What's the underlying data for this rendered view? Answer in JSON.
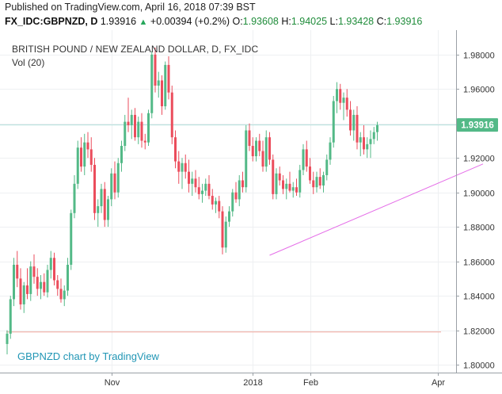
{
  "header": {
    "published": "Published on TradingView.com, April 16, 2018 07:39 BST",
    "symbol": "FX_IDC:GBPNZD, D",
    "last": "1.93916",
    "change": "+0.00394 (+0.2%)",
    "o_label": "O:",
    "o_value": "1.93608",
    "h_label": "H:",
    "h_value": "1.94025",
    "l_label": "L:",
    "l_value": "1.93428",
    "c_label": "C:",
    "c_value": "1.93916"
  },
  "overlay": {
    "title": "BRITISH POUND / NEW ZEALAND DOLLAR, D, FX_IDC",
    "volume": "Vol (20)",
    "watermark": "GBPNZD chart by TradingView"
  },
  "price_badge": "1.93916",
  "colors": {
    "up": "#53b987",
    "down": "#eb4d5c",
    "trendline": "#e56ee8",
    "support": "#f0a59a",
    "last_price_line": "#b2dfdb",
    "badge_bg": "#53b987"
  },
  "chart_data": {
    "type": "candlestick",
    "title": "BRITISH POUND / NEW ZEALAND DOLLAR, D, FX_IDC",
    "ylim": [
      1.8,
      1.985
    ],
    "y_ticks": [
      "1.98000",
      "1.96000",
      "1.94000",
      "1.92000",
      "1.90000",
      "1.88000",
      "1.86000",
      "1.84000",
      "1.82000",
      "1.80000"
    ],
    "x_ticks": [
      {
        "label": "Nov",
        "index": 31
      },
      {
        "label": "2018",
        "index": 73
      },
      {
        "label": "Feb",
        "index": 90
      },
      {
        "label": "Apr",
        "index": 128
      }
    ],
    "last_price": 1.93916,
    "support_level": 1.819,
    "trendline": {
      "from": {
        "index": 78,
        "price": 1.8635
      },
      "to": {
        "index": 140,
        "price": 1.9165
      }
    },
    "candles": [
      [
        1.812,
        1.82,
        1.806,
        1.818
      ],
      [
        1.818,
        1.84,
        1.815,
        1.838
      ],
      [
        1.838,
        1.862,
        1.834,
        1.858
      ],
      [
        1.858,
        1.866,
        1.845,
        1.85
      ],
      [
        1.85,
        1.856,
        1.832,
        1.835
      ],
      [
        1.835,
        1.848,
        1.83,
        1.846
      ],
      [
        1.846,
        1.856,
        1.838,
        1.841
      ],
      [
        1.841,
        1.86,
        1.837,
        1.857
      ],
      [
        1.857,
        1.864,
        1.847,
        1.851
      ],
      [
        1.851,
        1.856,
        1.84,
        1.844
      ],
      [
        1.844,
        1.852,
        1.838,
        1.848
      ],
      [
        1.848,
        1.853,
        1.84,
        1.842
      ],
      [
        1.842,
        1.858,
        1.839,
        1.855
      ],
      [
        1.855,
        1.866,
        1.85,
        1.862
      ],
      [
        1.862,
        1.865,
        1.846,
        1.849
      ],
      [
        1.849,
        1.852,
        1.84,
        1.844
      ],
      [
        1.844,
        1.85,
        1.836,
        1.838
      ],
      [
        1.838,
        1.846,
        1.834,
        1.843
      ],
      [
        1.843,
        1.862,
        1.84,
        1.858
      ],
      [
        1.858,
        1.89,
        1.855,
        1.888
      ],
      [
        1.888,
        1.91,
        1.885,
        1.905
      ],
      [
        1.905,
        1.93,
        1.902,
        1.926
      ],
      [
        1.926,
        1.932,
        1.912,
        1.915
      ],
      [
        1.915,
        1.934,
        1.91,
        1.929
      ],
      [
        1.929,
        1.935,
        1.92,
        1.925
      ],
      [
        1.925,
        1.932,
        1.912,
        1.916
      ],
      [
        1.916,
        1.92,
        1.884,
        1.888
      ],
      [
        1.888,
        1.896,
        1.88,
        1.892
      ],
      [
        1.892,
        1.905,
        1.888,
        1.902
      ],
      [
        1.902,
        1.906,
        1.88,
        1.884
      ],
      [
        1.884,
        1.898,
        1.88,
        1.896
      ],
      [
        1.896,
        1.914,
        1.892,
        1.911
      ],
      [
        1.911,
        1.918,
        1.896,
        1.9
      ],
      [
        1.9,
        1.92,
        1.897,
        1.917
      ],
      [
        1.917,
        1.93,
        1.912,
        1.927
      ],
      [
        1.927,
        1.945,
        1.924,
        1.941
      ],
      [
        1.941,
        1.955,
        1.935,
        1.939
      ],
      [
        1.939,
        1.948,
        1.931,
        1.945
      ],
      [
        1.945,
        1.949,
        1.93,
        1.932
      ],
      [
        1.932,
        1.944,
        1.928,
        1.941
      ],
      [
        1.941,
        1.946,
        1.926,
        1.93
      ],
      [
        1.93,
        1.934,
        1.925,
        1.929
      ],
      [
        1.929,
        1.948,
        1.927,
        1.946
      ],
      [
        1.946,
        1.982,
        1.943,
        1.98
      ],
      [
        1.98,
        1.984,
        1.958,
        1.962
      ],
      [
        1.962,
        1.97,
        1.955,
        1.965
      ],
      [
        1.965,
        1.968,
        1.945,
        1.95
      ],
      [
        1.95,
        1.976,
        1.948,
        1.974
      ],
      [
        1.974,
        1.979,
        1.954,
        1.958
      ],
      [
        1.958,
        1.962,
        1.928,
        1.932
      ],
      [
        1.932,
        1.936,
        1.914,
        1.918
      ],
      [
        1.918,
        1.924,
        1.905,
        1.912
      ],
      [
        1.912,
        1.92,
        1.902,
        1.917
      ],
      [
        1.917,
        1.922,
        1.908,
        1.912
      ],
      [
        1.912,
        1.919,
        1.9,
        1.905
      ],
      [
        1.905,
        1.912,
        1.898,
        1.908
      ],
      [
        1.908,
        1.913,
        1.9,
        1.903
      ],
      [
        1.903,
        1.909,
        1.896,
        1.899
      ],
      [
        1.899,
        1.905,
        1.894,
        1.901
      ],
      [
        1.901,
        1.908,
        1.898,
        1.905
      ],
      [
        1.905,
        1.91,
        1.896,
        1.898
      ],
      [
        1.898,
        1.902,
        1.89,
        1.893
      ],
      [
        1.893,
        1.897,
        1.888,
        1.895
      ],
      [
        1.895,
        1.898,
        1.885,
        1.889
      ],
      [
        1.889,
        1.892,
        1.864,
        1.868
      ],
      [
        1.868,
        1.886,
        1.865,
        1.883
      ],
      [
        1.883,
        1.892,
        1.88,
        1.889
      ],
      [
        1.889,
        1.902,
        1.886,
        1.9
      ],
      [
        1.9,
        1.906,
        1.894,
        1.896
      ],
      [
        1.896,
        1.91,
        1.892,
        1.907
      ],
      [
        1.907,
        1.912,
        1.9,
        1.903
      ],
      [
        1.903,
        1.939,
        1.9,
        1.936
      ],
      [
        1.936,
        1.94,
        1.924,
        1.927
      ],
      [
        1.927,
        1.932,
        1.918,
        1.921
      ],
      [
        1.921,
        1.932,
        1.918,
        1.93
      ],
      [
        1.93,
        1.934,
        1.921,
        1.924
      ],
      [
        1.924,
        1.93,
        1.912,
        1.915
      ],
      [
        1.915,
        1.936,
        1.912,
        1.932
      ],
      [
        1.932,
        1.935,
        1.916,
        1.919
      ],
      [
        1.919,
        1.922,
        1.896,
        1.899
      ],
      [
        1.899,
        1.914,
        1.896,
        1.911
      ],
      [
        1.911,
        1.915,
        1.904,
        1.907
      ],
      [
        1.907,
        1.91,
        1.899,
        1.902
      ],
      [
        1.902,
        1.908,
        1.896,
        1.905
      ],
      [
        1.905,
        1.912,
        1.9,
        1.901
      ],
      [
        1.901,
        1.906,
        1.897,
        1.903
      ],
      [
        1.903,
        1.908,
        1.898,
        1.9
      ],
      [
        1.9,
        1.916,
        1.897,
        1.913
      ],
      [
        1.913,
        1.928,
        1.91,
        1.925
      ],
      [
        1.925,
        1.93,
        1.912,
        1.915
      ],
      [
        1.915,
        1.92,
        1.905,
        1.907
      ],
      [
        1.907,
        1.912,
        1.899,
        1.903
      ],
      [
        1.903,
        1.912,
        1.9,
        1.909
      ],
      [
        1.909,
        1.914,
        1.902,
        1.904
      ],
      [
        1.904,
        1.912,
        1.9,
        1.91
      ],
      [
        1.91,
        1.922,
        1.907,
        1.919
      ],
      [
        1.919,
        1.932,
        1.916,
        1.929
      ],
      [
        1.929,
        1.956,
        1.926,
        1.953
      ],
      [
        1.953,
        1.964,
        1.946,
        1.96
      ],
      [
        1.96,
        1.963,
        1.948,
        1.952
      ],
      [
        1.952,
        1.958,
        1.942,
        1.955
      ],
      [
        1.955,
        1.96,
        1.944,
        1.948
      ],
      [
        1.948,
        1.953,
        1.933,
        1.936
      ],
      [
        1.936,
        1.948,
        1.93,
        1.945
      ],
      [
        1.945,
        1.95,
        1.925,
        1.929
      ],
      [
        1.929,
        1.935,
        1.921,
        1.932
      ],
      [
        1.932,
        1.939,
        1.922,
        1.925
      ],
      [
        1.925,
        1.932,
        1.92,
        1.928
      ],
      [
        1.928,
        1.936,
        1.92,
        1.931
      ],
      [
        1.931,
        1.938,
        1.928,
        1.935
      ],
      [
        1.935,
        1.941,
        1.93,
        1.939
      ]
    ]
  }
}
